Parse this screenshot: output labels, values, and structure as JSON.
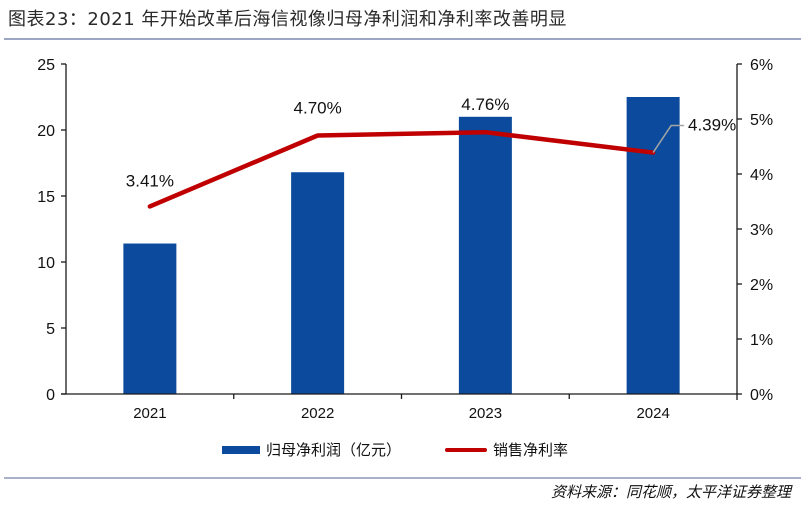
{
  "title": "图表23：2021 年开始改革后海信视像归母净利润和净利率改善明显",
  "source": "资料来源：同花顺，太平洋证券整理",
  "colors": {
    "bar": "#0B4A9C",
    "line": "#C00000",
    "leader": "#A6A6A6",
    "axis": "#1a1a1a"
  },
  "legend": {
    "bar_label": "归母净利润（亿元）",
    "line_label": "销售净利率"
  },
  "axes": {
    "left_ticks": [
      "0",
      "5",
      "10",
      "15",
      "20",
      "25"
    ],
    "right_ticks": [
      "0%",
      "1%",
      "2%",
      "3%",
      "4%",
      "5%",
      "6%"
    ],
    "categories": [
      "2021",
      "2022",
      "2023",
      "2024"
    ]
  },
  "data_labels": [
    "3.41%",
    "4.70%",
    "4.76%",
    "4.39%"
  ],
  "chart_data": {
    "type": "bar",
    "title": "图表23：2021 年开始改革后海信视像归母净利润和净利率改善明显",
    "categories": [
      "2021",
      "2022",
      "2023",
      "2024"
    ],
    "series": [
      {
        "name": "归母净利润（亿元）",
        "type": "bar",
        "axis": "left",
        "values": [
          11.4,
          16.8,
          21.0,
          22.5
        ]
      },
      {
        "name": "销售净利率",
        "type": "line",
        "axis": "right",
        "unit": "%",
        "values": [
          3.41,
          4.7,
          4.76,
          4.39
        ]
      }
    ],
    "xlabel": "",
    "ylabel": "",
    "ylim": [
      0,
      25
    ],
    "y2lim": [
      0,
      6
    ],
    "y2_format": "percent",
    "grid": false,
    "legend_position": "bottom",
    "data_labels_on": "line",
    "source": "资料来源：同花顺，太平洋证券整理"
  }
}
